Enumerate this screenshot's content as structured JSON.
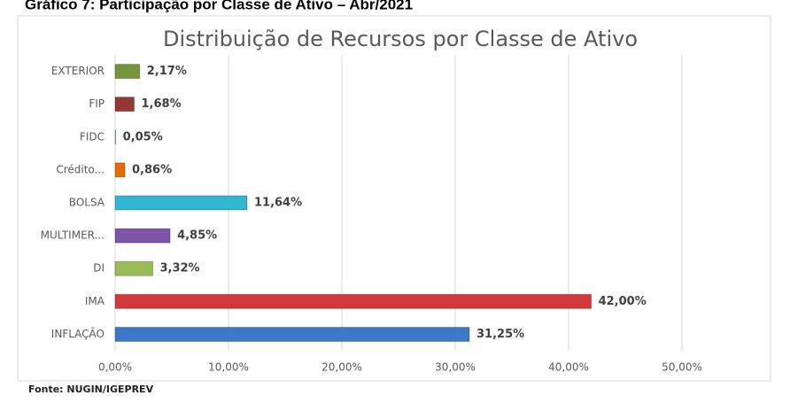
{
  "heading": "Gráfico 7: Participação por Classe de Ativo – Abr/2021",
  "chart_data": {
    "type": "hbar",
    "title": "Distribuição de Recursos por Classe de Ativo",
    "categories": [
      "EXTERIOR",
      "FIP",
      "FIDC",
      "Crédito...",
      "BOLSA",
      "MULTIMER...",
      "DI",
      "IMA",
      "INFLAÇÃO"
    ],
    "values": [
      2.17,
      1.68,
      0.05,
      0.86,
      11.64,
      4.85,
      3.32,
      42.0,
      31.25
    ],
    "value_labels": [
      "2,17%",
      "1,68%",
      "0,05%",
      "0,86%",
      "11,64%",
      "4,85%",
      "3,32%",
      "42,00%",
      "31,25%"
    ],
    "colors": [
      "#77933c",
      "#953735",
      "#4bacc6",
      "#e46c0a",
      "#31b6d4",
      "#7f54a6",
      "#9bbb59",
      "#d0383a",
      "#3c78c8"
    ],
    "xlim": [
      0,
      50
    ],
    "xticks": [
      {
        "value": 0,
        "label": "0,00%"
      },
      {
        "value": 10,
        "label": "10,00%"
      },
      {
        "value": 20,
        "label": "20,00%"
      },
      {
        "value": 30,
        "label": "30,00%"
      },
      {
        "value": 40,
        "label": "40,00%"
      },
      {
        "value": 50,
        "label": "50,00%"
      }
    ],
    "grid": true,
    "source": "Fonte: NUGIN/IGEPREV"
  }
}
